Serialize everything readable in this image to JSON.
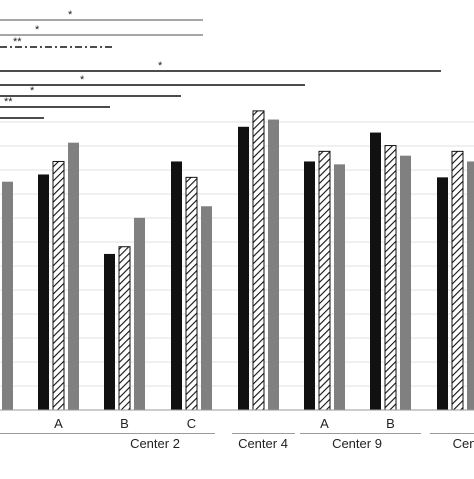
{
  "chart_data": {
    "type": "bar",
    "ylim": [
      0,
      20
    ],
    "grid": true,
    "series_styles": [
      {
        "fill": "#111111",
        "pattern": "solid"
      },
      {
        "fill": "#ffffff",
        "pattern": "diagonal-hatch"
      },
      {
        "fill": "#808080",
        "pattern": "solid"
      }
    ],
    "groups": [
      {
        "sub": "",
        "values": [
          null,
          null,
          15.8
        ]
      },
      {
        "sub": "A",
        "values": [
          16.3,
          17.2,
          18.5
        ]
      },
      {
        "sub": "B",
        "values": [
          10.8,
          11.3,
          13.3
        ]
      },
      {
        "sub": "C",
        "values": [
          17.2,
          16.1,
          14.1
        ]
      },
      {
        "sub": "",
        "values": [
          19.6,
          20.7,
          20.1
        ]
      },
      {
        "sub": "A",
        "values": [
          17.2,
          17.9,
          17.0
        ]
      },
      {
        "sub": "B",
        "values": [
          19.2,
          18.3,
          17.6
        ]
      },
      {
        "sub": "",
        "values": [
          16.1,
          17.9,
          17.2
        ]
      }
    ],
    "centers": [
      {
        "label": "Center 2"
      },
      {
        "label": "Center 4"
      },
      {
        "label": "Center 9"
      },
      {
        "label": "Cente"
      }
    ],
    "significance": [
      {
        "label": "*",
        "style": "solid",
        "color": "#888888"
      },
      {
        "label": "*",
        "style": "solid",
        "color": "#888888"
      },
      {
        "label": "**",
        "style": "dash-dot",
        "color": "#111111"
      },
      {
        "label": "*",
        "style": "solid",
        "color": "#111111"
      },
      {
        "label": "*",
        "style": "solid",
        "color": "#111111"
      },
      {
        "label": "*",
        "style": "solid",
        "color": "#111111"
      },
      {
        "label": "**",
        "style": "solid",
        "color": "#111111"
      },
      {
        "label": "",
        "style": "solid",
        "color": "#111111"
      }
    ]
  }
}
